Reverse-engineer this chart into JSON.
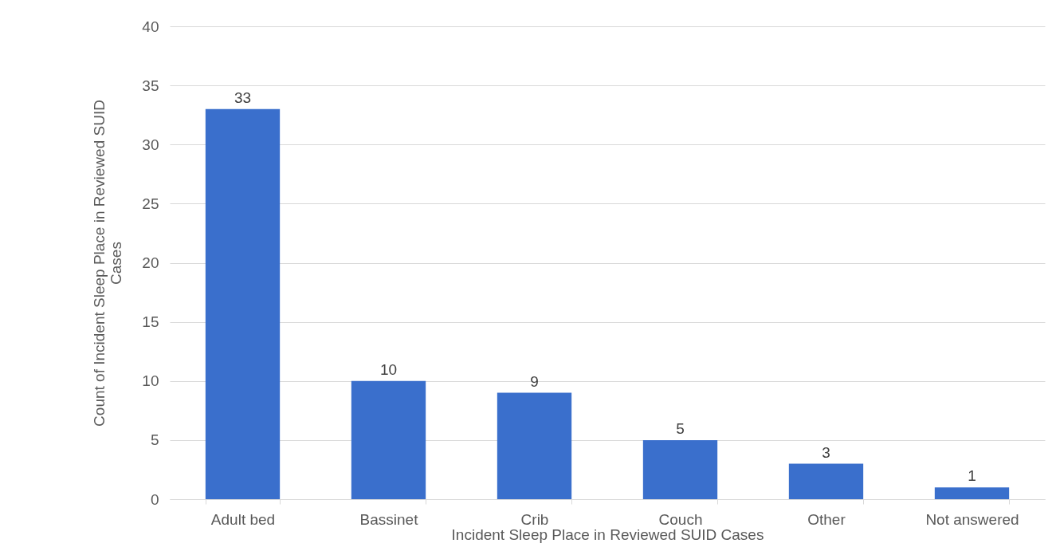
{
  "chart_data": {
    "type": "bar",
    "xlabel": "Incident Sleep Place in Reviewed SUID Cases",
    "ylabel": "Count of Incident Sleep Place in Reviewed SUID Cases",
    "categories": [
      "Adult bed",
      "Bassinet",
      "Crib",
      "Couch",
      "Other",
      "Not answered"
    ],
    "values": [
      33,
      10,
      9,
      5,
      3,
      1
    ],
    "color": "#3a6fcc",
    "ylim": [
      0,
      40
    ],
    "yticks": [
      0,
      5,
      10,
      15,
      20,
      25,
      30,
      35,
      40
    ],
    "grid": "y",
    "data_labels": true
  }
}
